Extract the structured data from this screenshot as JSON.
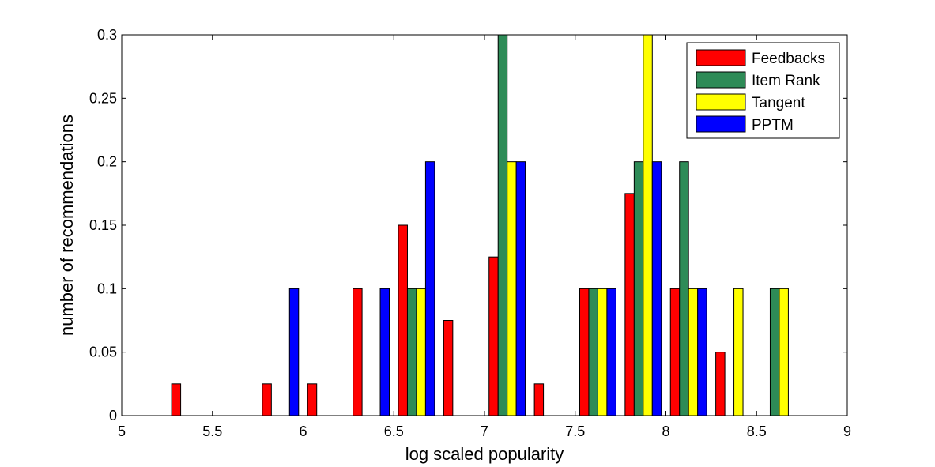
{
  "chart_data": {
    "type": "bar",
    "title": "",
    "xlabel": "log scaled popularity",
    "ylabel": "number of recommendations",
    "xlim": [
      5,
      9
    ],
    "ylim": [
      0,
      0.3
    ],
    "xticks": [
      "5",
      "5.5",
      "6",
      "6.5",
      "7",
      "7.5",
      "8",
      "8.5",
      "9"
    ],
    "yticks": [
      "0",
      "0.05",
      "0.1",
      "0.15",
      "0.2",
      "0.25",
      "0.3"
    ],
    "grid": false,
    "legend_position": "top-right",
    "x": [
      5.125,
      5.375,
      5.625,
      5.875,
      6.125,
      6.375,
      6.625,
      6.875,
      7.125,
      7.375,
      7.625,
      7.875,
      8.125,
      8.375,
      8.625,
      8.875
    ],
    "series": [
      {
        "name": "Feedbacks",
        "color": "#ff0000",
        "values": [
          0,
          0.025,
          0,
          0.025,
          0.025,
          0.1,
          0.15,
          0.075,
          0.125,
          0.025,
          0.1,
          0.175,
          0.1,
          0.05,
          0,
          0
        ]
      },
      {
        "name": "Item Rank",
        "color": "#2e8b57",
        "values": [
          0,
          0,
          0,
          0,
          0,
          0,
          0.1,
          0,
          0.3,
          0,
          0.1,
          0.2,
          0.2,
          0,
          0.1,
          0
        ]
      },
      {
        "name": "Tangent",
        "color": "#ffff00",
        "values": [
          0,
          0,
          0,
          0,
          0,
          0,
          0.1,
          0,
          0.2,
          0,
          0.1,
          0.3,
          0.1,
          0.1,
          0.1,
          0
        ]
      },
      {
        "name": "PPTM",
        "color": "#0000ff",
        "values": [
          0,
          0,
          0,
          0.1,
          0,
          0.1,
          0.2,
          0,
          0.2,
          0,
          0.1,
          0.2,
          0.1,
          0,
          0,
          0
        ]
      }
    ]
  }
}
